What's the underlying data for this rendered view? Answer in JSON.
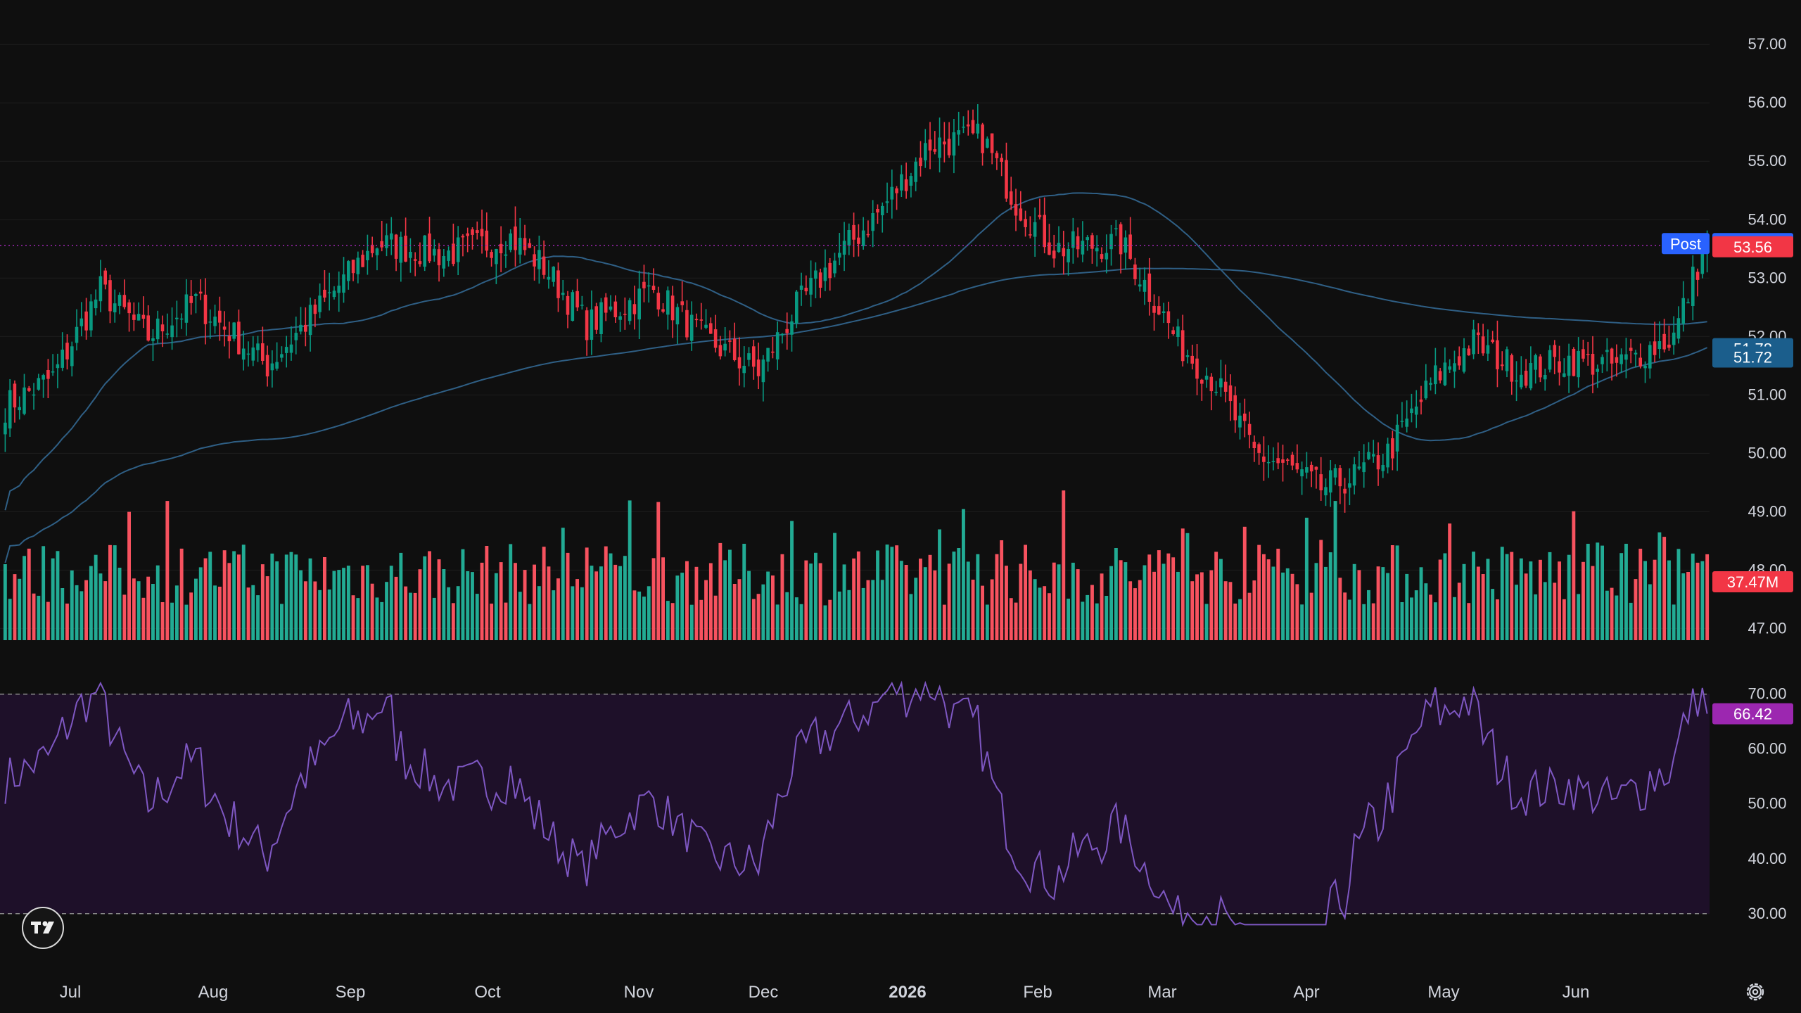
{
  "colors": {
    "background": "#0f0f0f",
    "grid": "#1f1f1f",
    "axis_text": "#d1d4dc",
    "up": "#089981",
    "down": "#f23645",
    "volume_up": "#22ab94",
    "volume_down": "#f7525f",
    "ma": "#2f5f85",
    "rsi_line": "#7e57c2",
    "rsi_band": "#1e1029",
    "post_badge": "#2962ff",
    "close_badge": "#f23645",
    "ma_badge": "#1b5e8c",
    "rsi_badge": "#9c27b0"
  },
  "icons": {
    "logo": "tradingview-logo-icon",
    "settings": "gear-icon"
  },
  "chart_data": [
    {
      "type": "candlestick",
      "title": "",
      "price_axis_labels": [
        "57.00",
        "56.00",
        "55.00",
        "54.00",
        "53.00",
        "52.00",
        "51.00",
        "50.00",
        "49.00",
        "48.00",
        "47.00"
      ],
      "time_axis_labels": [
        "Jul",
        "Aug",
        "Sep",
        "Oct",
        "Nov",
        "Dec",
        "2026",
        "Feb",
        "Mar",
        "Apr",
        "May",
        "Jun"
      ],
      "bold_time_label": "2026",
      "ylim": [
        46.8,
        57.4
      ],
      "anchors": [
        [
          0,
          50.8
        ],
        [
          10,
          51.3
        ],
        [
          20,
          52.8
        ],
        [
          30,
          52.0
        ],
        [
          40,
          52.6
        ],
        [
          55,
          51.5
        ],
        [
          66,
          52.5
        ],
        [
          78,
          53.6
        ],
        [
          92,
          53.4
        ],
        [
          106,
          53.7
        ],
        [
          113,
          53.2
        ],
        [
          122,
          52.2
        ],
        [
          136,
          52.8
        ],
        [
          146,
          52.0
        ],
        [
          158,
          51.4
        ],
        [
          166,
          52.5
        ],
        [
          175,
          53.4
        ],
        [
          184,
          54.2
        ],
        [
          194,
          55.3
        ],
        [
          205,
          55.4
        ],
        [
          212,
          54.3
        ],
        [
          220,
          53.5
        ],
        [
          234,
          53.6
        ],
        [
          242,
          52.5
        ],
        [
          246,
          51.9
        ],
        [
          254,
          51.2
        ],
        [
          262,
          50.0
        ],
        [
          268,
          49.8
        ],
        [
          276,
          49.4
        ],
        [
          283,
          49.6
        ],
        [
          290,
          50.0
        ],
        [
          300,
          51.3
        ],
        [
          308,
          51.9
        ],
        [
          318,
          51.4
        ],
        [
          328,
          51.6
        ],
        [
          338,
          51.5
        ],
        [
          350,
          52.0
        ],
        [
          357,
          53.7
        ]
      ],
      "n_candles": 358,
      "current_price": 53.56
    },
    {
      "type": "line",
      "name": "",
      "values": [
        53.59
      ],
      "badge_label": "Post"
    },
    {
      "type": "line",
      "name": "",
      "values": [
        51.78,
        51.72
      ]
    },
    {
      "type": "bar",
      "name": "",
      "last_value_label": "37.47M",
      "range": [
        18,
        48
      ]
    },
    {
      "type": "line",
      "name": "",
      "axis_labels": [
        "70.00",
        "60.00",
        "50.00",
        "40.00",
        "30.00"
      ],
      "ylim": [
        26,
        71.5
      ],
      "band": [
        30,
        70
      ],
      "last_value": "66.42"
    }
  ]
}
